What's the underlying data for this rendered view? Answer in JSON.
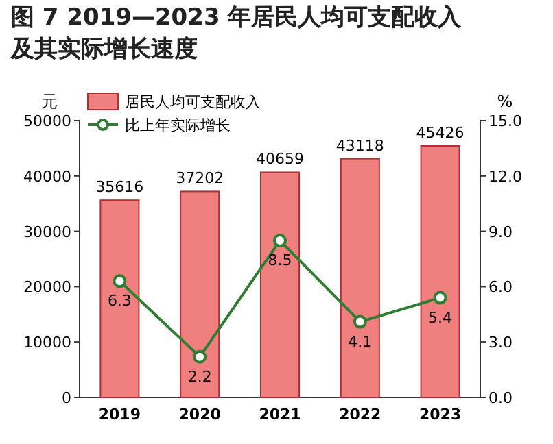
{
  "chart_data": {
    "type": "bar",
    "title": "图 7  2019—2023 年居民人均可支配收入及其实际增长速度",
    "categories": [
      "2019",
      "2020",
      "2021",
      "2022",
      "2023"
    ],
    "ylabel": "元",
    "y2label": "%",
    "series": [
      {
        "name": "居民人均可支配收入",
        "color": "#f08080",
        "values": [
          35616,
          37202,
          40659,
          43118,
          45426
        ]
      },
      {
        "name": "比上年实际增长",
        "type": "line",
        "color": "#2e7d32",
        "axis": "y2",
        "marker": "circle",
        "values": [
          6.3,
          2.2,
          8.5,
          4.1,
          5.4
        ]
      }
    ],
    "ylim": [
      0,
      50000
    ],
    "yticks": [
      0,
      10000,
      20000,
      30000,
      40000,
      50000
    ],
    "y2lim": [
      0,
      15
    ],
    "y2ticks": [
      {
        "value": 0,
        "label": "0.0"
      },
      {
        "value": 3,
        "label": "3.0"
      },
      {
        "value": 6,
        "label": "6.0"
      },
      {
        "value": 9,
        "label": "9.0"
      },
      {
        "value": 12,
        "label": "12.0"
      },
      {
        "value": 15,
        "label": "15.0"
      }
    ],
    "data_labels": true,
    "legend": "top left",
    "grid": false
  }
}
